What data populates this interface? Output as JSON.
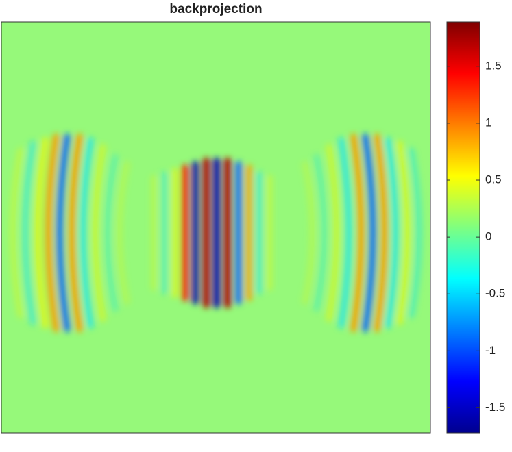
{
  "chart_data": {
    "type": "heatmap",
    "title": "backprojection",
    "colormap": "jet",
    "clim": [
      -1.72,
      1.89
    ],
    "cticks": [
      1.5,
      1,
      0.5,
      0,
      -0.5,
      -1,
      -1.5
    ]
  }
}
